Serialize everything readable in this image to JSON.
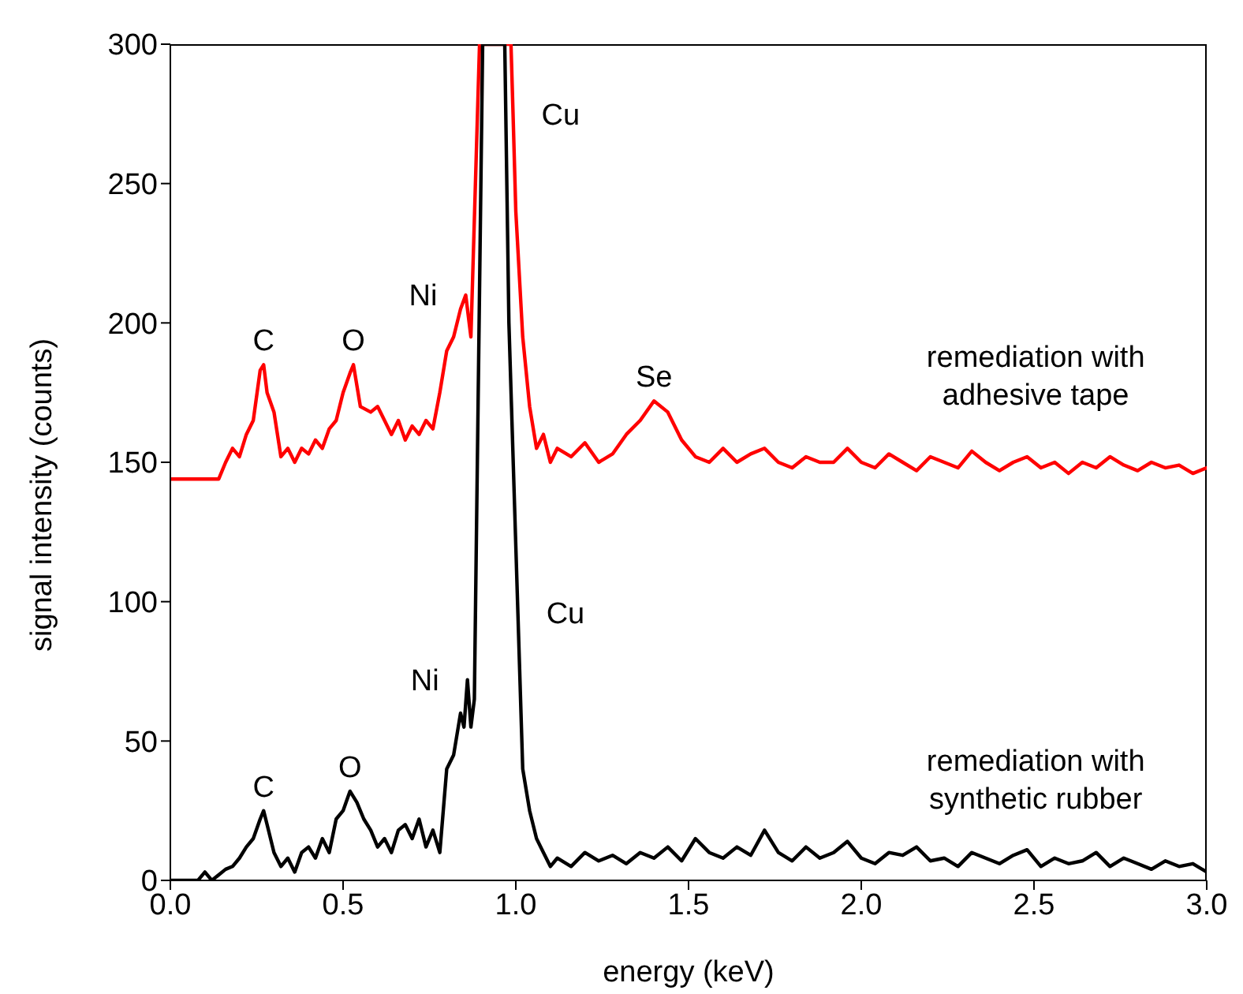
{
  "chart_data": {
    "type": "line",
    "xlabel": "energy (keV)",
    "ylabel": "signal intensity (counts)",
    "xlim": [
      0,
      3
    ],
    "xticks": [
      {
        "value": 0,
        "label": "0.0"
      },
      {
        "value": 0.5,
        "label": "0.5"
      },
      {
        "value": 1,
        "label": "1.0"
      },
      {
        "value": 1.5,
        "label": "1.5"
      },
      {
        "value": 2,
        "label": "2.0"
      },
      {
        "value": 2.5,
        "label": "2.5"
      },
      {
        "value": 3,
        "label": "3.0"
      }
    ],
    "ylim": [
      0,
      300
    ],
    "yticks": [
      0,
      50,
      100,
      150,
      200,
      250,
      300
    ],
    "marker": "none",
    "line_style": "solid",
    "series": [
      {
        "name": "remediation with adhesive tape",
        "color": "#ff0000",
        "x": [
          0,
          0.1,
          0.14,
          0.16,
          0.18,
          0.2,
          0.22,
          0.24,
          0.26,
          0.27,
          0.28,
          0.3,
          0.32,
          0.34,
          0.36,
          0.38,
          0.4,
          0.42,
          0.44,
          0.46,
          0.48,
          0.5,
          0.52,
          0.53,
          0.55,
          0.58,
          0.6,
          0.62,
          0.64,
          0.66,
          0.68,
          0.7,
          0.72,
          0.74,
          0.76,
          0.78,
          0.8,
          0.82,
          0.84,
          0.855,
          0.87,
          0.895,
          0.986,
          0.992,
          1.0,
          1.02,
          1.04,
          1.06,
          1.08,
          1.1,
          1.12,
          1.16,
          1.2,
          1.24,
          1.28,
          1.32,
          1.36,
          1.4,
          1.44,
          1.48,
          1.52,
          1.56,
          1.6,
          1.64,
          1.68,
          1.72,
          1.76,
          1.8,
          1.84,
          1.88,
          1.92,
          1.96,
          2.0,
          2.04,
          2.08,
          2.12,
          2.16,
          2.2,
          2.24,
          2.28,
          2.32,
          2.36,
          2.4,
          2.44,
          2.48,
          2.52,
          2.56,
          2.6,
          2.64,
          2.68,
          2.72,
          2.76,
          2.8,
          2.84,
          2.88,
          2.92,
          2.96,
          3.0
        ],
        "values": [
          144,
          144,
          144,
          150,
          155,
          152,
          160,
          165,
          183,
          185,
          175,
          168,
          152,
          155,
          150,
          155,
          153,
          158,
          155,
          162,
          165,
          175,
          182,
          185,
          170,
          168,
          170,
          165,
          160,
          165,
          158,
          163,
          160,
          165,
          162,
          175,
          190,
          195,
          205,
          210,
          195,
          300,
          300,
          275,
          240,
          195,
          170,
          155,
          160,
          150,
          155,
          152,
          157,
          150,
          153,
          160,
          165,
          172,
          168,
          158,
          152,
          150,
          155,
          150,
          153,
          155,
          150,
          148,
          152,
          150,
          150,
          155,
          150,
          148,
          153,
          150,
          147,
          152,
          150,
          148,
          154,
          150,
          147,
          150,
          152,
          148,
          150,
          146,
          150,
          148,
          152,
          149,
          147,
          150,
          148,
          149,
          146,
          148
        ]
      },
      {
        "name": "remediation with synthetic rubber",
        "color": "#000000",
        "x": [
          0,
          0.08,
          0.1,
          0.12,
          0.14,
          0.16,
          0.18,
          0.2,
          0.22,
          0.24,
          0.26,
          0.27,
          0.28,
          0.3,
          0.32,
          0.34,
          0.36,
          0.38,
          0.4,
          0.42,
          0.44,
          0.46,
          0.48,
          0.5,
          0.52,
          0.54,
          0.56,
          0.58,
          0.6,
          0.62,
          0.64,
          0.66,
          0.68,
          0.7,
          0.72,
          0.74,
          0.76,
          0.78,
          0.8,
          0.82,
          0.84,
          0.85,
          0.86,
          0.87,
          0.88,
          0.904,
          0.968,
          0.98,
          1.0,
          1.006,
          1.02,
          1.04,
          1.06,
          1.08,
          1.1,
          1.12,
          1.16,
          1.2,
          1.24,
          1.28,
          1.32,
          1.36,
          1.4,
          1.44,
          1.48,
          1.52,
          1.56,
          1.6,
          1.64,
          1.68,
          1.72,
          1.76,
          1.8,
          1.84,
          1.88,
          1.92,
          1.96,
          2.0,
          2.04,
          2.08,
          2.12,
          2.16,
          2.2,
          2.24,
          2.28,
          2.32,
          2.36,
          2.4,
          2.44,
          2.48,
          2.52,
          2.56,
          2.6,
          2.64,
          2.68,
          2.72,
          2.76,
          2.8,
          2.84,
          2.88,
          2.92,
          2.96,
          3.0
        ],
        "values": [
          0,
          0,
          3,
          0,
          2,
          4,
          5,
          8,
          12,
          15,
          22,
          25,
          20,
          10,
          5,
          8,
          3,
          10,
          12,
          8,
          15,
          10,
          22,
          25,
          32,
          28,
          22,
          18,
          12,
          15,
          10,
          18,
          20,
          15,
          22,
          12,
          18,
          10,
          40,
          45,
          60,
          55,
          72,
          55,
          65,
          300,
          300,
          200,
          120,
          96,
          40,
          25,
          15,
          10,
          5,
          8,
          5,
          10,
          7,
          9,
          6,
          10,
          8,
          12,
          7,
          15,
          10,
          8,
          12,
          9,
          18,
          10,
          7,
          12,
          8,
          10,
          14,
          8,
          6,
          10,
          9,
          12,
          7,
          8,
          5,
          10,
          8,
          6,
          9,
          11,
          5,
          8,
          6,
          7,
          10,
          5,
          8,
          6,
          4,
          7,
          5,
          6,
          3
        ]
      }
    ],
    "annotations": [
      {
        "text": "C",
        "x": 0.27,
        "y": 185
      },
      {
        "text": "O",
        "x": 0.53,
        "y": 185
      },
      {
        "text": "Ni",
        "x": 0.855,
        "y": 210
      },
      {
        "text": "Cu",
        "x": 0.992,
        "y": 275
      },
      {
        "text": "Se",
        "x": 1.4,
        "y": 172
      },
      {
        "text": "C",
        "x": 0.27,
        "y": 25
      },
      {
        "text": "O",
        "x": 0.52,
        "y": 32
      },
      {
        "text": "Ni",
        "x": 0.86,
        "y": 72
      },
      {
        "text": "Cu",
        "x": 1.006,
        "y": 96
      }
    ]
  }
}
